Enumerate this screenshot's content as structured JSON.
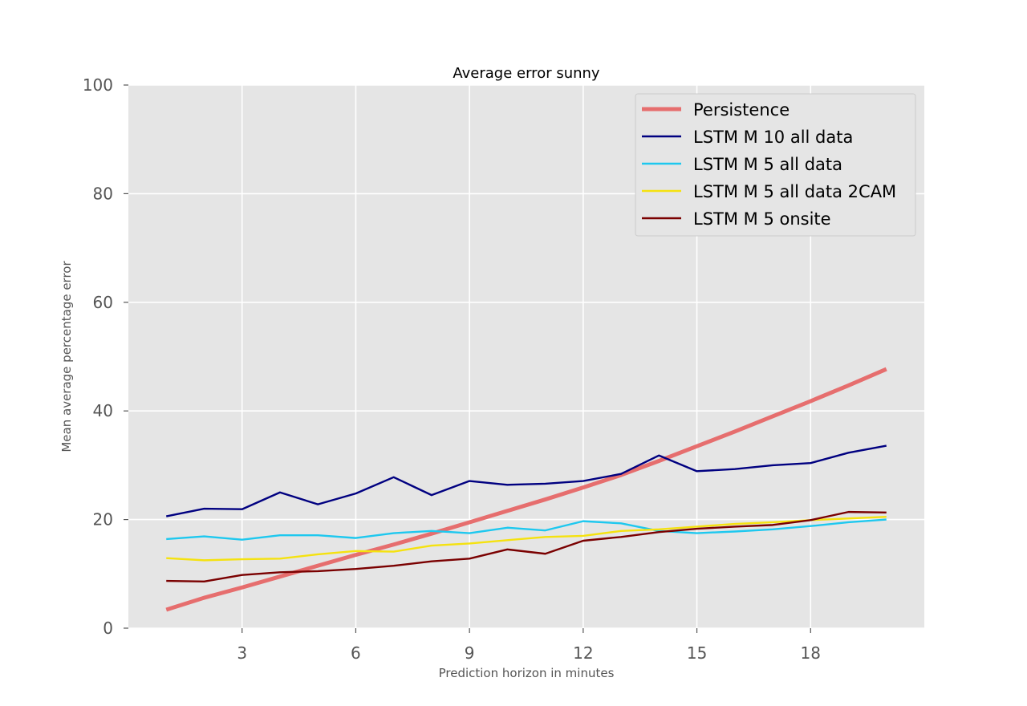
{
  "chart_data": {
    "type": "line",
    "title": "Average error sunny",
    "xlabel": "Prediction horizon in minutes",
    "ylabel": "Mean average percentage error",
    "xlim": [
      0,
      21
    ],
    "ylim": [
      0,
      100
    ],
    "xticks": [
      3,
      6,
      9,
      12,
      15,
      18
    ],
    "yticks": [
      0,
      20,
      40,
      60,
      80,
      100
    ],
    "grid": true,
    "legend_position": "top-right",
    "background": "#e5e5e5",
    "x": [
      1,
      2,
      3,
      4,
      5,
      6,
      7,
      8,
      9,
      10,
      11,
      12,
      13,
      14,
      15,
      16,
      17,
      18,
      19,
      20
    ],
    "series": [
      {
        "name": "Persistence",
        "color": "#e66060",
        "style": "thick",
        "values": [
          3.4,
          5.6,
          7.5,
          9.5,
          11.5,
          13.5,
          15.4,
          17.4,
          19.5,
          21.6,
          23.7,
          25.9,
          28.2,
          30.8,
          33.5,
          36.2,
          39.0,
          41.8,
          44.7,
          47.7
        ]
      },
      {
        "name": "LSTM M 10 all data",
        "color": "#000080",
        "style": "thin",
        "values": [
          20.6,
          22.0,
          21.9,
          25.0,
          22.8,
          24.8,
          27.8,
          24.5,
          27.1,
          26.4,
          26.6,
          27.1,
          28.4,
          31.8,
          28.9,
          29.3,
          30.0,
          30.4,
          32.3,
          33.6
        ]
      },
      {
        "name": "LSTM M 5 all data",
        "color": "#1ec8ef",
        "style": "thin",
        "values": [
          16.4,
          16.9,
          16.3,
          17.1,
          17.1,
          16.6,
          17.5,
          17.9,
          17.5,
          18.5,
          18.0,
          19.7,
          19.3,
          17.9,
          17.5,
          17.8,
          18.2,
          18.8,
          19.5,
          20.0
        ]
      },
      {
        "name": "LSTM M 5 all data 2CAM",
        "color": "#f5e20f",
        "style": "thin",
        "values": [
          12.9,
          12.5,
          12.7,
          12.8,
          13.6,
          14.2,
          14.1,
          15.2,
          15.6,
          16.2,
          16.8,
          17.0,
          17.9,
          18.2,
          18.7,
          19.2,
          19.5,
          19.9,
          20.2,
          20.5
        ]
      },
      {
        "name": "LSTM M 5 onsite",
        "color": "#7a0000",
        "style": "thin",
        "values": [
          8.7,
          8.6,
          9.8,
          10.3,
          10.5,
          10.9,
          11.5,
          12.3,
          12.8,
          14.5,
          13.7,
          16.1,
          16.8,
          17.7,
          18.3,
          18.7,
          19.0,
          19.9,
          21.4,
          21.3
        ]
      }
    ]
  }
}
